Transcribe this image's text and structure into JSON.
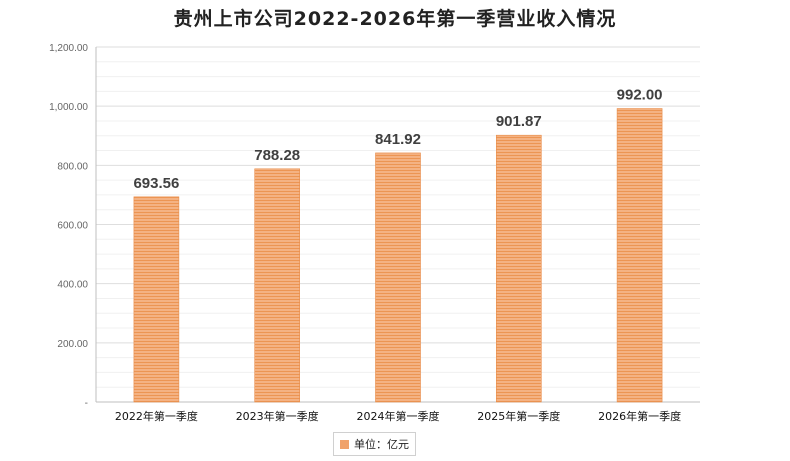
{
  "chart_data": {
    "type": "bar",
    "title": "贵州上市公司2022-2026年第一季营业收入情况",
    "categories": [
      "2022年第一季度",
      "2023年第一季度",
      "2024年第一季度",
      "2025年第一季度",
      "2026年第一季度"
    ],
    "series": [
      {
        "name": "单位：亿元",
        "values": [
          693.56,
          788.28,
          841.92,
          901.87,
          992.0
        ]
      }
    ],
    "value_labels": [
      "693.56",
      "788.28",
      "841.92",
      "901.87",
      "992.00"
    ],
    "y_ticks": [
      "-",
      "200.00",
      "400.00",
      "600.00",
      "800.00",
      "1,000.00",
      "1,200.00"
    ],
    "ylim": [
      0,
      1200
    ],
    "grid": true,
    "legend_position": "bottom",
    "bar_color": "#f0a26a"
  }
}
